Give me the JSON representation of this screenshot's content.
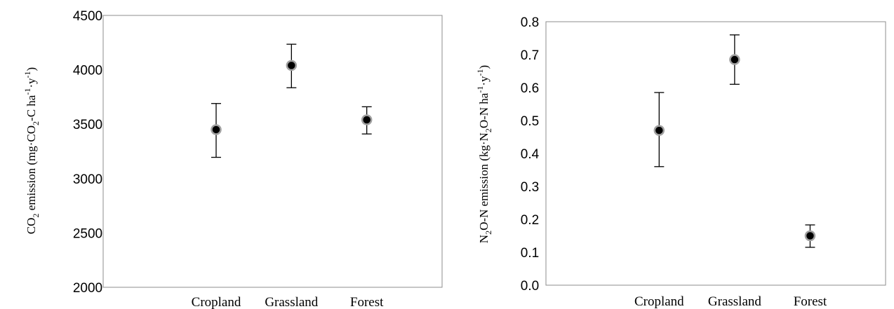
{
  "chart_data": [
    {
      "type": "scatter",
      "categories": [
        "Cropland",
        "Grassland",
        "Forest"
      ],
      "series": [
        {
          "values": [
            3450,
            4040,
            3540
          ],
          "err_low": [
            3195,
            3835,
            3410
          ],
          "err_high": [
            3690,
            4235,
            3660
          ]
        }
      ],
      "ylabel": {
        "pre": "CO",
        "sub1": "2",
        "mid": " emission (mg·CO",
        "sub2": "2",
        "mid2": "-C ha",
        "sup1": "-1",
        "mid3": "·y",
        "sup2": "-1",
        "post": ")"
      },
      "ylim": [
        2000,
        4500
      ],
      "yticks": [
        "2000",
        "2500",
        "3000",
        "3500",
        "4000",
        "4500"
      ],
      "grid": false,
      "marker_color": "#000000",
      "marker_edge": "#a0a0a0"
    },
    {
      "type": "scatter",
      "categories": [
        "Cropland",
        "Grassland",
        "Forest"
      ],
      "series": [
        {
          "values": [
            0.47,
            0.685,
            0.15
          ],
          "err_low": [
            0.36,
            0.61,
            0.115
          ],
          "err_high": [
            0.585,
            0.76,
            0.183
          ]
        }
      ],
      "ylabel": {
        "pre": "N",
        "sub1": "2",
        "mid": "O-N emission (kg·N",
        "sub2": "2",
        "mid2": "O-N ha",
        "sup1": "-1",
        "mid3": "·y",
        "sup2": "-1",
        "post": ")"
      },
      "ylim": [
        0,
        0.8
      ],
      "yticks": [
        "0.0",
        "0.1",
        "0.2",
        "0.3",
        "0.4",
        "0.5",
        "0.6",
        "0.7",
        "0.8"
      ],
      "grid": false,
      "marker_color": "#000000",
      "marker_edge": "#a0a0a0"
    }
  ]
}
